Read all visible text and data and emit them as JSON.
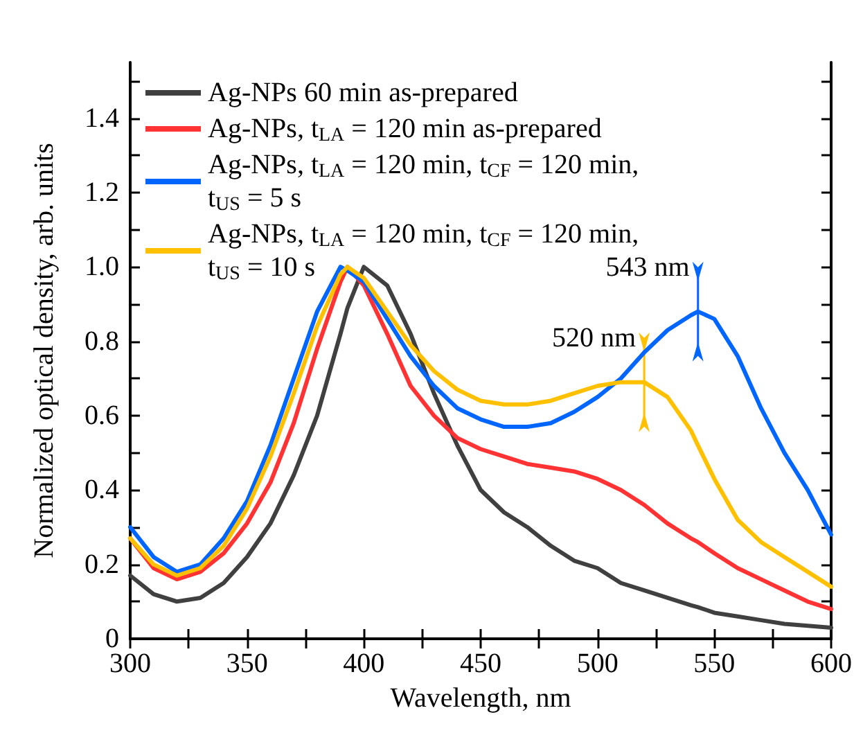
{
  "chart_data": {
    "type": "line",
    "xlabel": "Wavelength, nm",
    "ylabel": "Normalized optical density, arb. units",
    "xlim": [
      300,
      600
    ],
    "xticks": [
      300,
      {
        "value": 325,
        "label": null
      },
      350,
      {
        "value": 375,
        "label": null
      },
      400,
      {
        "value": 425,
        "label": null
      },
      450,
      {
        "value": 475,
        "label": null
      },
      500,
      {
        "value": 525,
        "label": null
      },
      550,
      {
        "value": 575,
        "label": null
      },
      600
    ],
    "ylim": [
      0,
      1.55
    ],
    "yticks": [
      0,
      {
        "value": 0.1,
        "label": null
      },
      {
        "value": 0.2,
        "label": "0.2"
      },
      {
        "value": 0.3,
        "label": null
      },
      {
        "value": 0.4,
        "label": "0.4"
      },
      {
        "value": 0.5,
        "label": null
      },
      {
        "value": 0.6,
        "label": "0.6"
      },
      {
        "value": 0.7,
        "label": null
      },
      {
        "value": 0.8,
        "label": "0.8"
      },
      {
        "value": 0.9,
        "label": null
      },
      {
        "value": 1,
        "label": "1.0"
      },
      {
        "value": 1.1,
        "label": null
      },
      {
        "value": 1.2,
        "label": "1.2"
      },
      {
        "value": 1.3,
        "label": null
      },
      {
        "value": 1.4,
        "label": "1.4"
      },
      {
        "value": 1.5,
        "label": null
      }
    ],
    "grid": false,
    "legend": "top left",
    "marker": "none",
    "line_style": "solid",
    "annotations": [
      {
        "text": "543 nm",
        "x": 543,
        "y": 0.88
      },
      {
        "text": "520 nm",
        "x": 520,
        "y": 0.69
      }
    ],
    "x": [
      300,
      310,
      320,
      330,
      340,
      350,
      360,
      370,
      380,
      390,
      393,
      400,
      410,
      420,
      430,
      440,
      450,
      460,
      470,
      480,
      490,
      500,
      510,
      520,
      530,
      540,
      543,
      550,
      560,
      570,
      580,
      590,
      600
    ],
    "series": [
      {
        "name": "Ag-NPs 60 min as-prepared",
        "color": "#404040",
        "values": [
          0.17,
          0.12,
          0.1,
          0.11,
          0.15,
          0.22,
          0.31,
          0.44,
          0.6,
          0.82,
          0.89,
          1.0,
          0.95,
          0.82,
          0.66,
          0.52,
          0.4,
          0.34,
          0.3,
          0.25,
          0.21,
          0.19,
          0.15,
          0.13,
          0.11,
          0.09,
          0.085,
          0.07,
          0.06,
          0.05,
          0.04,
          0.035,
          0.03
        ]
      },
      {
        "name": "Ag-NPs, t$_{LA}$ = 120 min as-prepared",
        "color": "#ff3333",
        "values": [
          0.27,
          0.19,
          0.16,
          0.18,
          0.23,
          0.31,
          0.42,
          0.58,
          0.78,
          0.96,
          1.0,
          0.95,
          0.82,
          0.68,
          0.6,
          0.54,
          0.51,
          0.49,
          0.47,
          0.46,
          0.45,
          0.43,
          0.4,
          0.36,
          0.31,
          0.27,
          0.26,
          0.23,
          0.19,
          0.16,
          0.13,
          0.1,
          0.08
        ]
      },
      {
        "name": "Ag-NPs, t$_{LA}$ = 120 min, t$_{CF}$ = 120 min, t$_{US}$ = 5 s",
        "color": "#0066ff",
        "values": [
          0.3,
          0.22,
          0.18,
          0.2,
          0.27,
          0.37,
          0.52,
          0.7,
          0.88,
          1.0,
          0.99,
          0.96,
          0.86,
          0.76,
          0.68,
          0.62,
          0.59,
          0.57,
          0.57,
          0.58,
          0.61,
          0.65,
          0.7,
          0.77,
          0.83,
          0.87,
          0.88,
          0.86,
          0.76,
          0.62,
          0.5,
          0.4,
          0.28
        ]
      },
      {
        "name": "Ag-NPs, t$_{LA}$ = 120 min, t$_{CF}$ = 120 min, t$_{US}$ = 10 s",
        "color": "#ffc000",
        "values": [
          0.27,
          0.2,
          0.17,
          0.19,
          0.25,
          0.35,
          0.49,
          0.66,
          0.84,
          0.98,
          1.0,
          0.97,
          0.88,
          0.79,
          0.72,
          0.67,
          0.64,
          0.63,
          0.63,
          0.64,
          0.66,
          0.68,
          0.69,
          0.69,
          0.65,
          0.56,
          0.52,
          0.43,
          0.32,
          0.26,
          0.22,
          0.18,
          0.14
        ]
      }
    ]
  }
}
